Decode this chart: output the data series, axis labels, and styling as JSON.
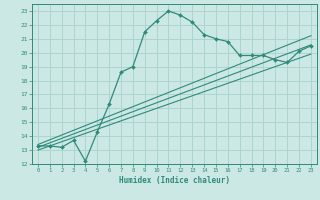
{
  "xlabel": "Humidex (Indice chaleur)",
  "x": [
    0,
    1,
    2,
    3,
    4,
    5,
    6,
    7,
    8,
    9,
    10,
    11,
    12,
    13,
    14,
    15,
    16,
    17,
    18,
    19,
    20,
    21,
    22,
    23
  ],
  "y_main": [
    13.3,
    13.3,
    13.2,
    13.7,
    12.2,
    14.3,
    16.3,
    18.6,
    19.0,
    21.5,
    22.3,
    23.0,
    22.7,
    22.2,
    21.3,
    21.0,
    20.8,
    19.8,
    19.8,
    19.8,
    19.5,
    19.3,
    20.1,
    20.5
  ],
  "y_line1": [
    13.0,
    13.3,
    13.6,
    13.9,
    14.2,
    14.5,
    14.8,
    15.1,
    15.4,
    15.7,
    16.0,
    16.3,
    16.6,
    16.9,
    17.2,
    17.5,
    17.8,
    18.1,
    18.4,
    18.7,
    19.0,
    19.3,
    19.6,
    19.9
  ],
  "y_line2": [
    13.2,
    13.52,
    13.84,
    14.16,
    14.48,
    14.8,
    15.12,
    15.44,
    15.76,
    16.08,
    16.4,
    16.72,
    17.04,
    17.36,
    17.68,
    18.0,
    18.32,
    18.64,
    18.96,
    19.28,
    19.6,
    19.92,
    20.24,
    20.56
  ],
  "y_line3": [
    13.4,
    13.74,
    14.08,
    14.42,
    14.76,
    15.1,
    15.44,
    15.78,
    16.12,
    16.46,
    16.8,
    17.14,
    17.48,
    17.82,
    18.16,
    18.5,
    18.84,
    19.18,
    19.52,
    19.86,
    20.2,
    20.54,
    20.88,
    21.22
  ],
  "line_color": "#2e8b7a",
  "bg_color": "#cce8e4",
  "grid_color": "#aed4cf",
  "xlim": [
    -0.5,
    23.5
  ],
  "ylim": [
    12,
    23.5
  ],
  "yticks": [
    12,
    13,
    14,
    15,
    16,
    17,
    18,
    19,
    20,
    21,
    22,
    23
  ],
  "xticks": [
    0,
    1,
    2,
    3,
    4,
    5,
    6,
    7,
    8,
    9,
    10,
    11,
    12,
    13,
    14,
    15,
    16,
    17,
    18,
    19,
    20,
    21,
    22,
    23
  ]
}
